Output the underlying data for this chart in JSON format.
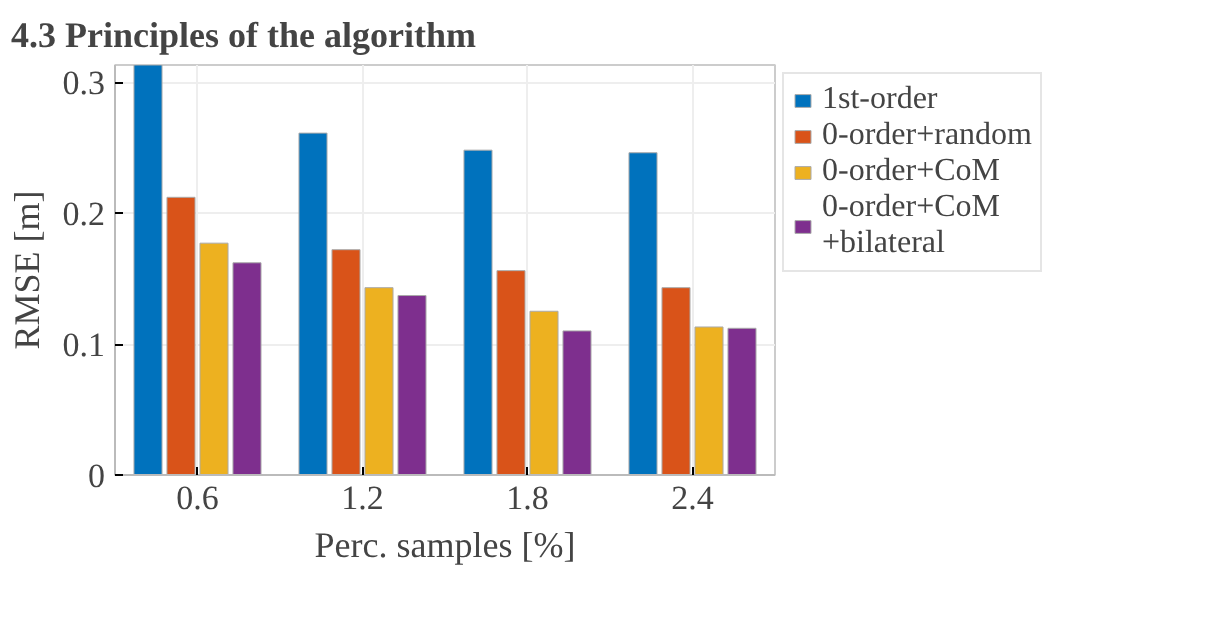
{
  "chart_data": {
    "type": "bar",
    "title": "4.3   Principles of the algorithm",
    "xlabel": "Perc. samples [%]",
    "ylabel": "RMSE [m]",
    "categories": [
      "0.6",
      "1.2",
      "1.8",
      "2.4"
    ],
    "series": [
      {
        "name": "1st-order",
        "color": "#0072bd",
        "values": [
          0.313,
          0.261,
          0.248,
          0.246
        ]
      },
      {
        "name": "0-order+random",
        "color": "#d95319",
        "values": [
          0.212,
          0.172,
          0.156,
          0.143
        ]
      },
      {
        "name": "0-order+CoM",
        "color": "#edb120",
        "values": [
          0.177,
          0.143,
          0.125,
          0.113
        ]
      },
      {
        "name": "0-order+CoM\n+bilateral",
        "color": "#7e2f8e",
        "values": [
          0.162,
          0.137,
          0.11,
          0.112
        ]
      }
    ],
    "ylim": [
      0,
      0.313
    ],
    "yticks": [
      0,
      0.1,
      0.2,
      0.3
    ],
    "grid": true,
    "legend": "right"
  }
}
